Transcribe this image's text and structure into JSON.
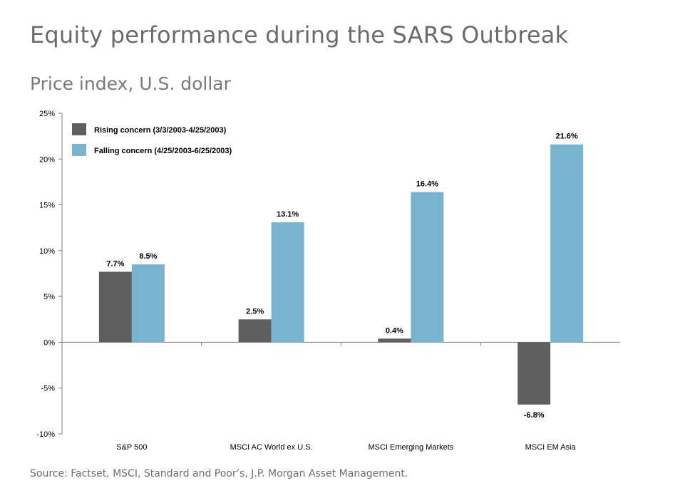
{
  "title": "Equity performance during the SARS Outbreak",
  "subtitle": "Price index, U.S. dollar",
  "source": "Source: Factset, MSCI, Standard and Poor’s, J.P. Morgan Asset Management.",
  "chart_data": {
    "type": "bar",
    "categories": [
      "S&P 500",
      "MSCI AC World ex U.S.",
      "MSCI Emerging Markets",
      "MSCI EM Asia"
    ],
    "series": [
      {
        "name": "Rising concern (3/3/2003-4/25/2003)",
        "color": "#5f5f5f",
        "values": [
          7.7,
          2.5,
          0.4,
          -6.8
        ],
        "labels": [
          "7.7%",
          "2.5%",
          "0.4%",
          "-6.8%"
        ]
      },
      {
        "name": "Falling concern (4/25/2003-6/25/2003)",
        "color": "#78b4d0",
        "values": [
          8.5,
          13.1,
          16.4,
          21.6
        ],
        "labels": [
          "8.5%",
          "13.1%",
          "16.4%",
          "21.6%"
        ]
      }
    ],
    "ylim": [
      -10,
      25
    ],
    "yticks": [
      25,
      20,
      15,
      10,
      5,
      0,
      -5,
      -10
    ],
    "ytick_labels": [
      "25%",
      "20%",
      "15%",
      "10%",
      "5%",
      "0%",
      "-5%",
      "-10%"
    ],
    "legend_position": "top-left",
    "grid": false
  }
}
